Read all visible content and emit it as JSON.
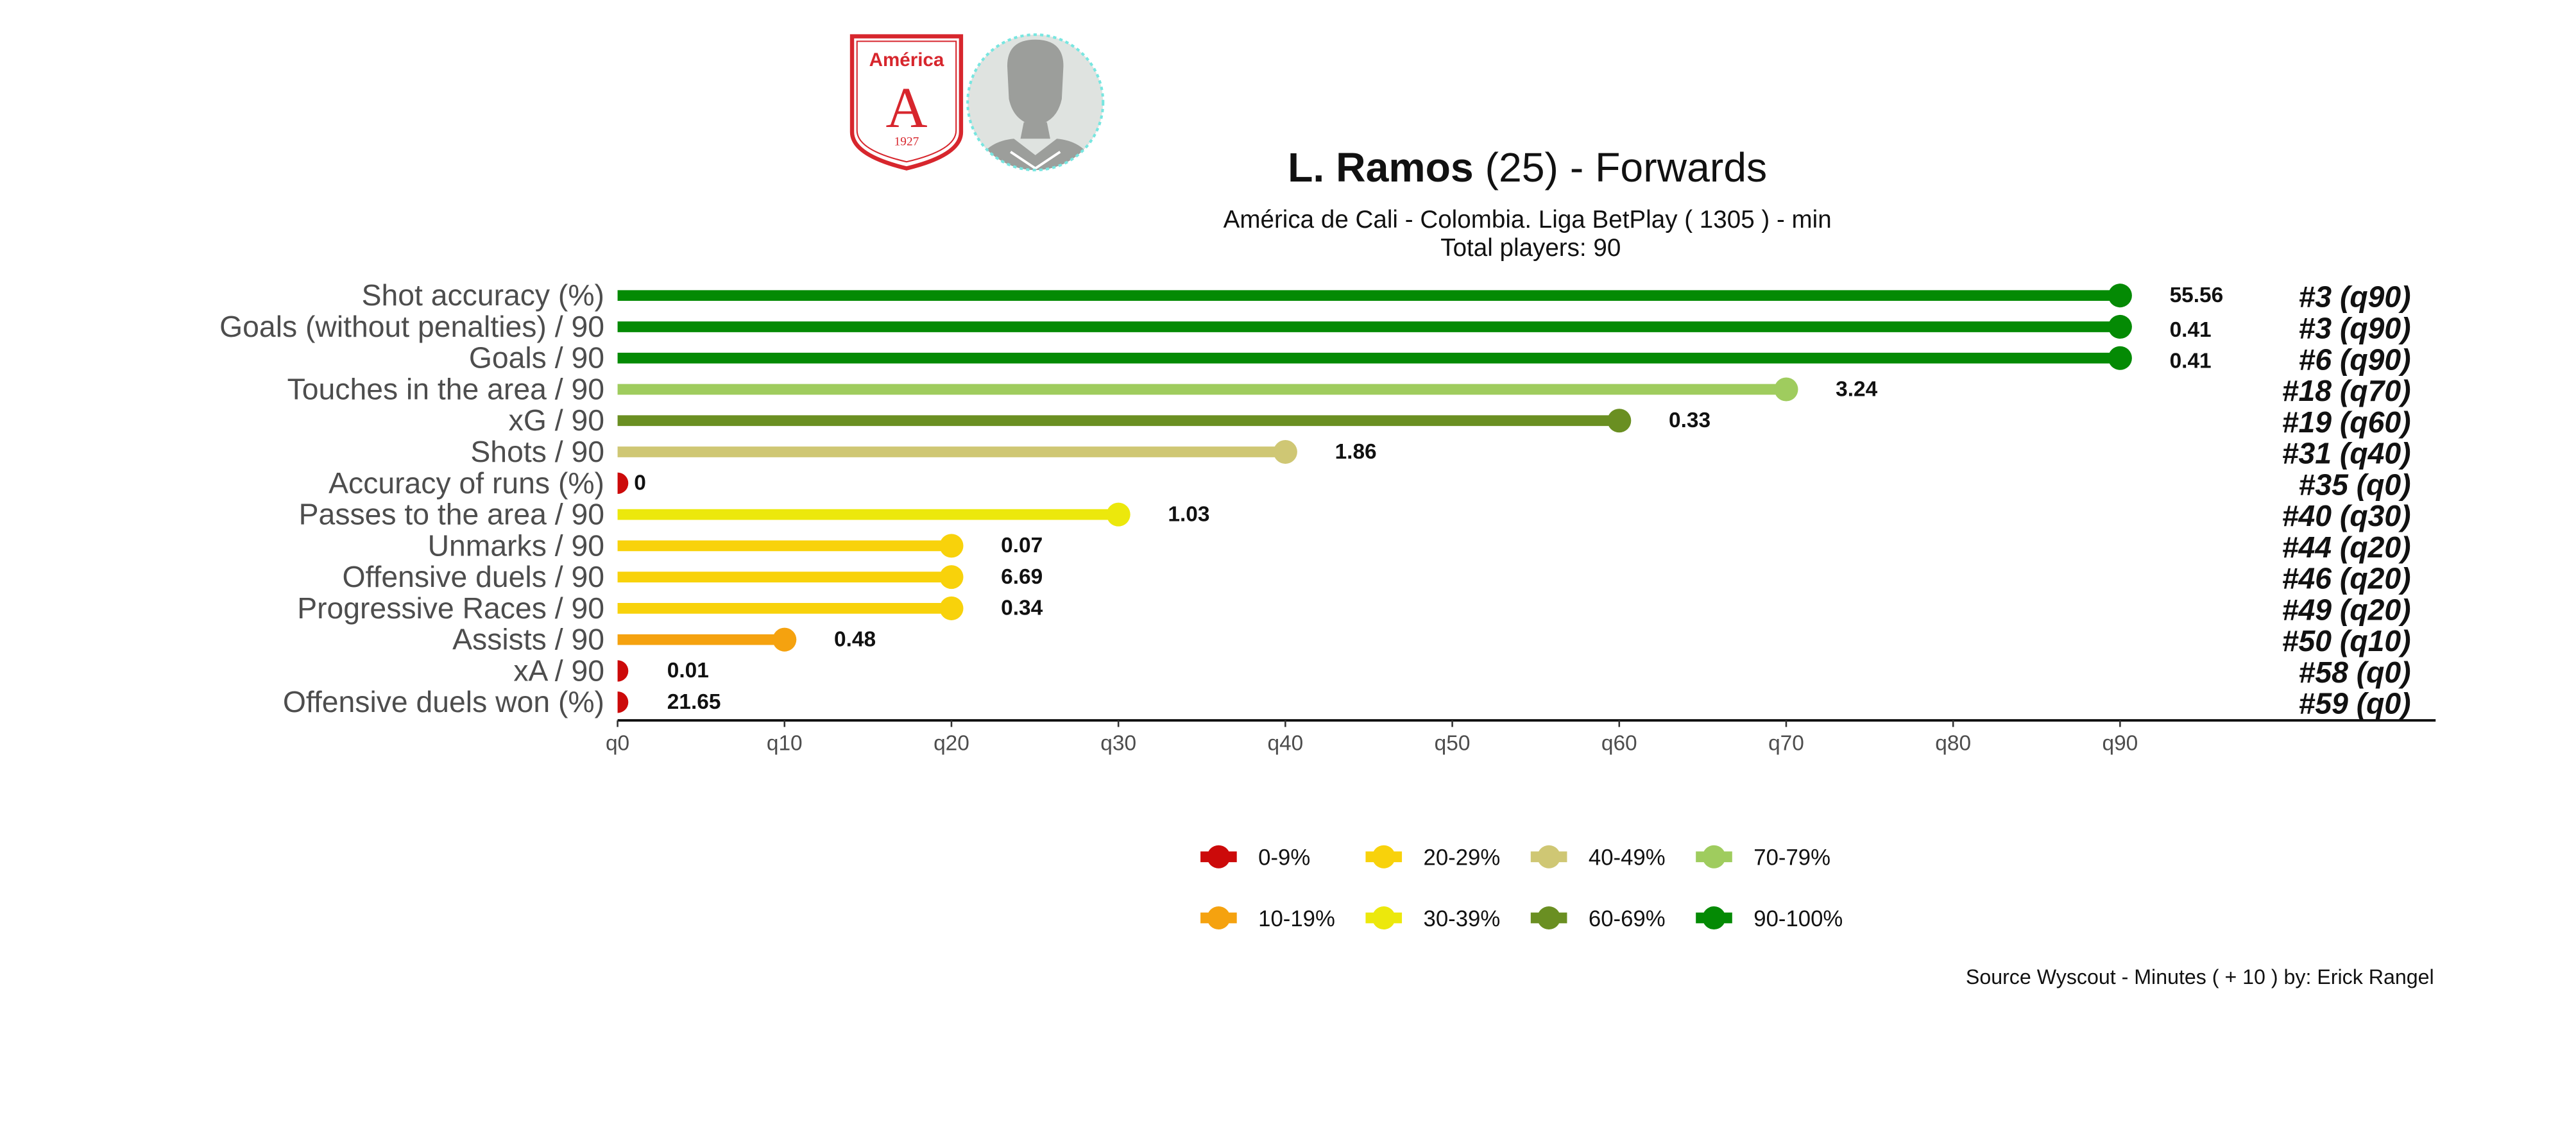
{
  "header": {
    "player_name": "L. Ramos",
    "age_text": "(25)",
    "separator": "-",
    "position": "Forwards",
    "club": "América de Cali",
    "subtitle_sep": "-",
    "league": "Colombia. Liga BetPlay",
    "minutes_text": "( 1305 ) - min",
    "total_players_label": "Total players:",
    "total_players": "90"
  },
  "logo": {
    "top_text": "América",
    "letter": "A",
    "year": "1927",
    "color": "#d7262d"
  },
  "avatar": {
    "icon": "player-silhouette-icon"
  },
  "chart_data": {
    "type": "lollipop",
    "x_ticks": [
      "q0",
      "q10",
      "q20",
      "q30",
      "q40",
      "q50",
      "q60",
      "q70",
      "q80",
      "q90"
    ],
    "xlim": [
      0,
      100
    ],
    "metrics": [
      {
        "label": "Shot accuracy (%)",
        "percentile": 90,
        "value": "55.56",
        "rank": "#3 (q90)"
      },
      {
        "label": "Goals (without penalties) / 90",
        "percentile": 90,
        "value": "0.41",
        "rank": "#3 (q90)"
      },
      {
        "label": "Goals / 90",
        "percentile": 90,
        "value": "0.41",
        "rank": "#6 (q90)"
      },
      {
        "label": "Touches in the area / 90",
        "percentile": 70,
        "value": "3.24",
        "rank": "#18 (q70)"
      },
      {
        "label": "xG / 90",
        "percentile": 60,
        "value": "0.33",
        "rank": "#19 (q60)"
      },
      {
        "label": "Shots / 90",
        "percentile": 40,
        "value": "1.86",
        "rank": "#31 (q40)"
      },
      {
        "label": "Accuracy of runs (%)",
        "percentile": 0,
        "value": "0",
        "rank": "#35 (q0)"
      },
      {
        "label": "Passes to the area / 90",
        "percentile": 30,
        "value": "1.03",
        "rank": "#40 (q30)"
      },
      {
        "label": "Unmarks / 90",
        "percentile": 20,
        "value": "0.07",
        "rank": "#44 (q20)"
      },
      {
        "label": "Offensive duels / 90",
        "percentile": 20,
        "value": "6.69",
        "rank": "#46 (q20)"
      },
      {
        "label": "Progressive Races / 90",
        "percentile": 20,
        "value": "0.34",
        "rank": "#49 (q20)"
      },
      {
        "label": "Assists / 90",
        "percentile": 10,
        "value": "0.48",
        "rank": "#50 (q10)"
      },
      {
        "label": "xA / 90",
        "percentile": 0,
        "value": "0.01",
        "rank": "#58 (q0)"
      },
      {
        "label": "Offensive duels won (%)",
        "percentile": 0,
        "value": "21.65",
        "rank": "#59 (q0)"
      }
    ],
    "legend": [
      {
        "label": "0-9%",
        "color": "#cc0a0a"
      },
      {
        "label": "10-19%",
        "color": "#f5a20f"
      },
      {
        "label": "20-29%",
        "color": "#f8d20b"
      },
      {
        "label": "30-39%",
        "color": "#ece80c"
      },
      {
        "label": "40-49%",
        "color": "#cfc774"
      },
      {
        "label": "60-69%",
        "color": "#6a8f22"
      },
      {
        "label": "70-79%",
        "color": "#9fcc5e"
      },
      {
        "label": "90-100%",
        "color": "#048a04"
      }
    ],
    "grid": false,
    "legend_position": "bottom"
  },
  "footer": {
    "source": "Source Wyscout - Minutes ( + 10 ) by: Erick Rangel"
  }
}
